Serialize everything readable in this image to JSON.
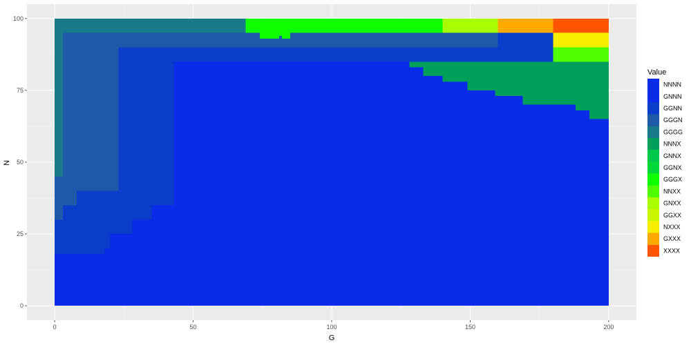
{
  "chart_data": {
    "type": "heatmap",
    "title": "",
    "xlabel": "G",
    "ylabel": "N",
    "xlim": [
      -10,
      210
    ],
    "ylim": [
      -5,
      105
    ],
    "x_ticks": [
      0,
      50,
      100,
      150,
      200
    ],
    "y_ticks": [
      0,
      25,
      50,
      75,
      100
    ],
    "grid": true,
    "legend_title": "Value",
    "legend_position": "right",
    "categories": [
      {
        "label": "NNNN",
        "color": "#0a2be8"
      },
      {
        "label": "GNNN",
        "color": "#0a2be8"
      },
      {
        "label": "GGNN",
        "color": "#0a3dc9"
      },
      {
        "label": "GGGN",
        "color": "#1e5aa8"
      },
      {
        "label": "GGGG",
        "color": "#1a7a8a"
      },
      {
        "label": "NNNX",
        "color": "#00a05a"
      },
      {
        "label": "GNNX",
        "color": "#00c84a"
      },
      {
        "label": "GGNX",
        "color": "#00d83a"
      },
      {
        "label": "GGGX",
        "color": "#10ff00"
      },
      {
        "label": "NNXX",
        "color": "#50ff00"
      },
      {
        "label": "GNXX",
        "color": "#a8ff00"
      },
      {
        "label": "GGXX",
        "color": "#c8f500"
      },
      {
        "label": "NXXX",
        "color": "#f5ee00"
      },
      {
        "label": "GXXX",
        "color": "#ffaa00"
      },
      {
        "label": "XXXX",
        "color": "#ff5500"
      }
    ],
    "regions": [
      {
        "value": "GGGG",
        "x": [
          0,
          200
        ],
        "y": [
          0,
          100
        ]
      },
      {
        "value": "GGGN",
        "x": [
          3,
          160
        ],
        "y": [
          0,
          95
        ]
      },
      {
        "value": "GGNN",
        "x": [
          23,
          180
        ],
        "y": [
          0,
          90
        ]
      },
      {
        "value": "GNNN",
        "x": [
          43,
          200
        ],
        "y": [
          0,
          85
        ]
      },
      {
        "value": "GGGX",
        "x": [
          69,
          140
        ],
        "y": [
          95,
          100
        ]
      },
      {
        "value": "GNXX",
        "x": [
          140,
          160
        ],
        "y": [
          95,
          100
        ]
      },
      {
        "value": "GXXX",
        "x": [
          160,
          180
        ],
        "y": [
          95,
          100
        ]
      },
      {
        "value": "XXXX",
        "x": [
          180,
          200
        ],
        "y": [
          95,
          100
        ]
      },
      {
        "value": "GGNN",
        "x": [
          160,
          180
        ],
        "y": [
          90,
          95
        ]
      },
      {
        "value": "NXXX",
        "x": [
          180,
          200
        ],
        "y": [
          90,
          95
        ]
      },
      {
        "value": "NNXX",
        "x": [
          180,
          200
        ],
        "y": [
          85,
          90
        ]
      },
      {
        "value": "GGGX",
        "x": [
          74,
          81
        ],
        "y": [
          93,
          95
        ]
      },
      {
        "value": "GGGX",
        "x": [
          81,
          82
        ],
        "y": [
          94,
          95
        ]
      },
      {
        "value": "GGGX",
        "x": [
          82,
          85
        ],
        "y": [
          93,
          95
        ]
      },
      {
        "value": "NNNX",
        "x": [
          128,
          200
        ],
        "y": [
          83,
          85
        ]
      },
      {
        "value": "NNNX",
        "x": [
          133,
          200
        ],
        "y": [
          80,
          83
        ]
      },
      {
        "value": "NNNX",
        "x": [
          140,
          200
        ],
        "y": [
          78,
          80
        ]
      },
      {
        "value": "NNNX",
        "x": [
          149,
          200
        ],
        "y": [
          75,
          78
        ]
      },
      {
        "value": "NNNX",
        "x": [
          159,
          200
        ],
        "y": [
          73,
          75
        ]
      },
      {
        "value": "NNNX",
        "x": [
          169,
          200
        ],
        "y": [
          70,
          73
        ]
      },
      {
        "value": "NNNX",
        "x": [
          188,
          200
        ],
        "y": [
          68,
          70
        ]
      },
      {
        "value": "NNNX",
        "x": [
          193,
          200
        ],
        "y": [
          65,
          68
        ]
      },
      {
        "value": "GGGN",
        "x": [
          0,
          3
        ],
        "y": [
          30,
          45
        ]
      },
      {
        "value": "GGNN",
        "x": [
          0,
          3
        ],
        "y": [
          0,
          30
        ]
      },
      {
        "value": "GGNN",
        "x": [
          3,
          8
        ],
        "y": [
          0,
          35
        ]
      },
      {
        "value": "GGNN",
        "x": [
          8,
          15
        ],
        "y": [
          0,
          40
        ]
      },
      {
        "value": "GGNN",
        "x": [
          15,
          23
        ],
        "y": [
          0,
          40
        ]
      },
      {
        "value": "GNNN",
        "x": [
          0,
          18
        ],
        "y": [
          0,
          18
        ]
      },
      {
        "value": "GNNN",
        "x": [
          18,
          20
        ],
        "y": [
          0,
          20
        ]
      },
      {
        "value": "GNNN",
        "x": [
          20,
          28
        ],
        "y": [
          0,
          25
        ]
      },
      {
        "value": "GNNN",
        "x": [
          28,
          35
        ],
        "y": [
          0,
          30
        ]
      },
      {
        "value": "GNNN",
        "x": [
          35,
          43
        ],
        "y": [
          0,
          35
        ]
      },
      {
        "value": "GNNN",
        "x": [
          0,
          200
        ],
        "y": [
          0,
          15
        ]
      }
    ]
  }
}
